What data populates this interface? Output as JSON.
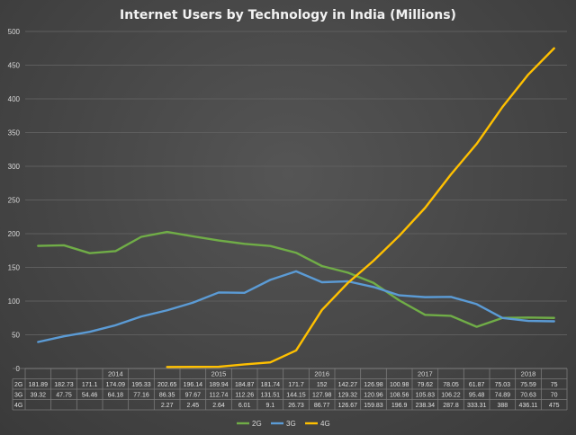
{
  "chart_data": {
    "type": "line",
    "title": "Internet Users by Technology in India (Millions)",
    "ylim": [
      0,
      500
    ],
    "yticks": [
      "0",
      "50",
      "100",
      "150",
      "200",
      "250",
      "300",
      "350",
      "400",
      "450",
      "500"
    ],
    "years": [
      "2014",
      "2015",
      "2016",
      "2017",
      "2018"
    ],
    "year_positions": [
      3,
      7,
      11,
      15,
      19
    ],
    "x": [
      "",
      "",
      "",
      "2014",
      "",
      "",
      "",
      "2015",
      "",
      "",
      "",
      "2016",
      "",
      "",
      "",
      "2017",
      "",
      "",
      "",
      "2018",
      ""
    ],
    "grid": true,
    "legend": "bottom",
    "series": [
      {
        "name": "2G",
        "color": "#70ad47",
        "values": [
          181.89,
          182.73,
          171.1,
          174.09,
          195.33,
          202.65,
          196.14,
          189.94,
          184.87,
          181.74,
          171.7,
          152,
          142.27,
          126.98,
          100.98,
          79.62,
          78.05,
          61.87,
          75.03,
          75.59,
          75
        ],
        "labels": [
          "181.89",
          "182.73",
          "171.1",
          "174.09",
          "195.33",
          "202.65",
          "196.14",
          "189.94",
          "184.87",
          "181.74",
          "171.7",
          "152",
          "142.27",
          "126.98",
          "100.98",
          "79.62",
          "78.05",
          "61.87",
          "75.03",
          "75.59",
          "75"
        ]
      },
      {
        "name": "3G",
        "color": "#5b9bd5",
        "values": [
          39.32,
          47.75,
          54.46,
          64.18,
          77.16,
          86.35,
          97.67,
          112.74,
          112.26,
          131.51,
          144.15,
          127.98,
          129.32,
          120.96,
          108.56,
          105.83,
          106.22,
          95.48,
          74.89,
          70.63,
          70
        ],
        "labels": [
          "39.32",
          "47.75",
          "54.46",
          "64.18",
          "77.16",
          "86.35",
          "97.67",
          "112.74",
          "112.26",
          "131.51",
          "144.15",
          "127.98",
          "129.32",
          "120.96",
          "108.56",
          "105.83",
          "106.22",
          "95.48",
          "74.89",
          "70.63",
          "70"
        ]
      },
      {
        "name": "4G",
        "color": "#ffc000",
        "values": [
          null,
          null,
          null,
          null,
          null,
          2.27,
          2.45,
          2.64,
          6.01,
          9.1,
          26.73,
          86.77,
          126.67,
          159.83,
          196.9,
          238.34,
          287.8,
          333.31,
          388,
          436.11,
          475
        ],
        "labels": [
          "",
          "",
          "",
          "",
          "",
          "2.27",
          "2.45",
          "2.64",
          "6.01",
          "9.1",
          "26.73",
          "86.77",
          "126.67",
          "159.83",
          "196.9",
          "238.34",
          "287.8",
          "333.31",
          "388",
          "436.11",
          "475"
        ]
      }
    ]
  }
}
